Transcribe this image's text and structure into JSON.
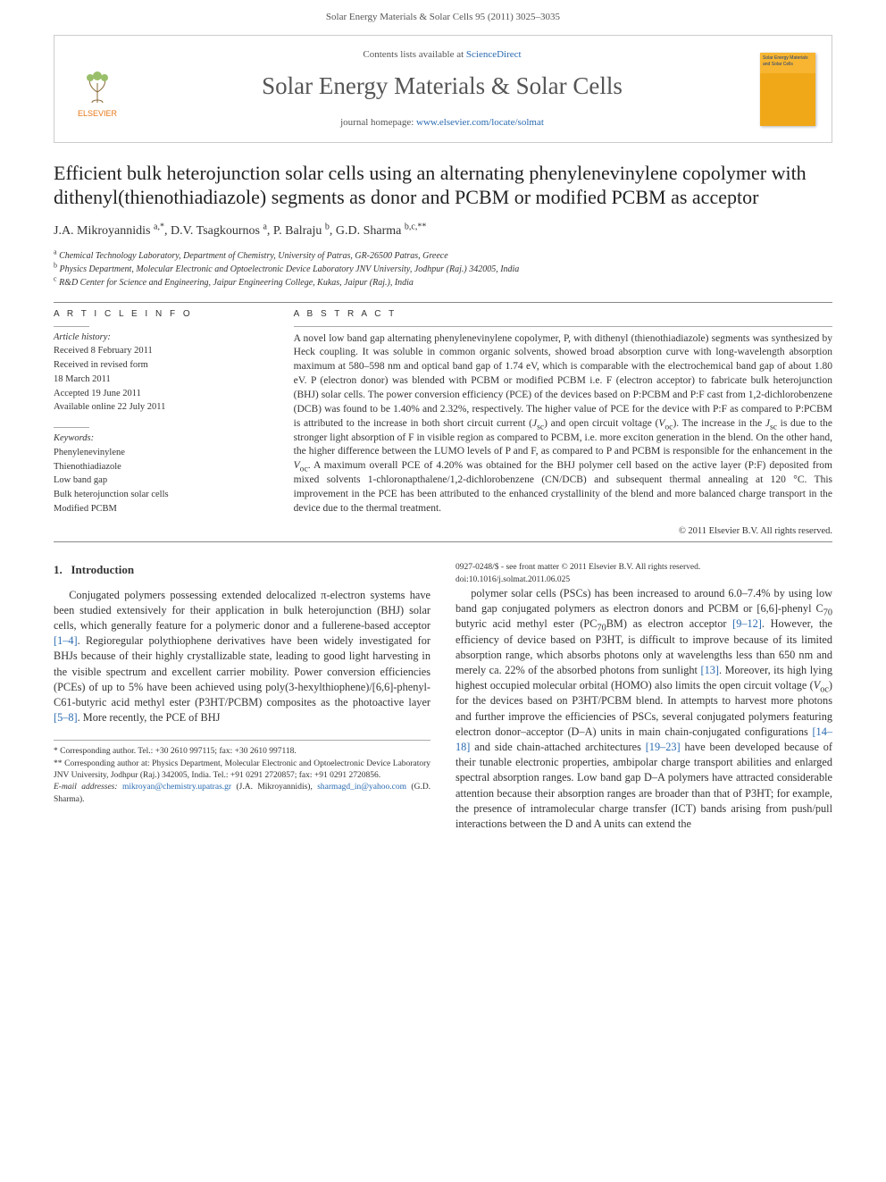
{
  "header": {
    "running_head": "Solar Energy Materials & Solar Cells 95 (2011) 3025–3035"
  },
  "masthead": {
    "publisher_name": "ELSEVIER",
    "contents_prefix": "Contents lists available at ",
    "contents_link_text": "ScienceDirect",
    "journal_name": "Solar Energy Materials & Solar Cells",
    "homepage_prefix": "journal homepage: ",
    "homepage_link": "www.elsevier.com/locate/solmat",
    "cover_text": "Solar Energy Materials and Solar Cells"
  },
  "article": {
    "title": "Efficient bulk heterojunction solar cells using an alternating phenylenevinylene copolymer with dithenyl(thienothiadiazole) segments as donor and PCBM or modified PCBM as acceptor",
    "authors_html": "J.A. Mikroyannidis <sup>a,*</sup>, D.V. Tsagkournos <sup>a</sup>, P. Balraju <sup>b</sup>, G.D. Sharma <sup>b,c,**</sup>",
    "affiliations": [
      {
        "sup": "a",
        "text": "Chemical Technology Laboratory, Department of Chemistry, University of Patras, GR-26500 Patras, Greece"
      },
      {
        "sup": "b",
        "text": "Physics Department, Molecular Electronic and Optoelectronic Device Laboratory JNV University, Jodhpur (Raj.) 342005, India"
      },
      {
        "sup": "c",
        "text": "R&D Center for Science and Engineering, Jaipur Engineering College, Kukas, Jaipur (Raj.), India"
      }
    ]
  },
  "article_info": {
    "heading": "A R T I C L E   I N F O",
    "history_label": "Article history:",
    "history": [
      "Received 8 February 2011",
      "Received in revised form",
      "18 March 2011",
      "Accepted 19 June 2011",
      "Available online 22 July 2011"
    ],
    "keywords_label": "Keywords:",
    "keywords": [
      "Phenylenevinylene",
      "Thienothiadiazole",
      "Low band gap",
      "Bulk heterojunction solar cells",
      "Modified PCBM"
    ]
  },
  "abstract": {
    "heading": "A B S T R A C T",
    "text": "A novel low band gap alternating phenylenevinylene copolymer, P, with dithenyl (thienothiadiazole) segments was synthesized by Heck coupling. It was soluble in common organic solvents, showed broad absorption curve with long-wavelength absorption maximum at 580–598 nm and optical band gap of 1.74 eV, which is comparable with the electrochemical band gap of about 1.80 eV. P (electron donor) was blended with PCBM or modified PCBM i.e. F (electron acceptor) to fabricate bulk heterojunction (BHJ) solar cells. The power conversion efficiency (PCE) of the devices based on P:PCBM and P:F cast from 1,2-dichlorobenzene (DCB) was found to be 1.40% and 2.32%, respectively. The higher value of PCE for the device with P:F as compared to P:PCBM is attributed to the increase in both short circuit current (Jsc) and open circuit voltage (Voc). The increase in the Jsc is due to the stronger light absorption of F in visible region as compared to PCBM, i.e. more exciton generation in the blend. On the other hand, the higher difference between the LUMO levels of P and F, as compared to P and PCBM is responsible for the enhancement in the Voc. A maximum overall PCE of 4.20% was obtained for the BHJ polymer cell based on the active layer (P:F) deposited from mixed solvents 1-chloronapthalene/1,2-dichlorobenzene (CN/DCB) and subsequent thermal annealing at 120 °C. This improvement in the PCE has been attributed to the enhanced crystallinity of the blend and more balanced charge transport in the device due to the thermal treatment.",
    "copyright": "© 2011 Elsevier B.V. All rights reserved."
  },
  "body": {
    "section_number": "1.",
    "section_title": "Introduction",
    "col1_p1": "Conjugated polymers possessing extended delocalized π-electron systems have been studied extensively for their application in bulk heterojunction (BHJ) solar cells, which generally feature for a polymeric donor and a fullerene-based acceptor [1–4]. Regioregular polythiophene derivatives have been widely investigated for BHJs because of their highly crystallizable state, leading to good light harvesting in the visible spectrum and excellent carrier mobility. Power conversion efficiencies (PCEs) of up to 5% have been achieved using poly(3-hexylthiophene)/[6,6]-phenyl-C61-butyric acid methyl ester (P3HT/PCBM) composites as the photoactive layer [5–8]. More recently, the PCE of BHJ",
    "col2_p1": "polymer solar cells (PSCs) has been increased to around 6.0–7.4% by using low band gap conjugated polymers as electron donors and PCBM or [6,6]-phenyl C70 butyric acid methyl ester (PC70BM) as electron acceptor [9–12]. However, the efficiency of device based on P3HT, is difficult to improve because of its limited absorption range, which absorbs photons only at wavelengths less than 650 nm and merely ca. 22% of the absorbed photons from sunlight [13]. Moreover, its high lying highest occupied molecular orbital (HOMO) also limits the open circuit voltage (Voc) for the devices based on P3HT/PCBM blend. In attempts to harvest more photons and further improve the efficiencies of PSCs, several conjugated polymers featuring electron donor–acceptor (D–A) units in main chain-conjugated configurations [14–18] and side chain-attached architectures [19–23] have been developed because of their tunable electronic properties, ambipolar charge transport abilities and enlarged spectral absorption ranges. Low band gap D–A polymers have attracted considerable attention because their absorption ranges are broader than that of P3HT; for example, the presence of intramolecular charge transfer (ICT) bands arising from push/pull interactions between the D and A units can extend the",
    "refs": {
      "r1": "[1–4]",
      "r2": "[5–8]",
      "r3": "[9–12]",
      "r4": "[13]",
      "r5": "[14–18]",
      "r6": "[19–23]"
    }
  },
  "footnotes": {
    "corr1": "* Corresponding author. Tel.: +30 2610 997115; fax: +30 2610 997118.",
    "corr2": "** Corresponding author at: Physics Department, Molecular Electronic and Optoelectronic Device Laboratory JNV University, Jodhpur (Raj.) 342005, India. Tel.: +91 0291 2720857; fax: +91 0291 2720856.",
    "email_label": "E-mail addresses:",
    "email1": "mikroyan@chemistry.upatras.gr",
    "email1_who": "(J.A. Mikroyannidis),",
    "email2": "sharmagd_in@yahoo.com",
    "email2_who": "(G.D. Sharma)."
  },
  "footer": {
    "line1": "0927-0248/$ - see front matter © 2011 Elsevier B.V. All rights reserved.",
    "line2": "doi:10.1016/j.solmat.2011.06.025"
  },
  "style": {
    "link_color": "#2a6ab0",
    "text_color": "#333333",
    "rule_color": "#888888",
    "accent_orange": "#e67817",
    "cover_bg_top": "#f7b531",
    "cover_bg_bottom": "#f0a818"
  }
}
